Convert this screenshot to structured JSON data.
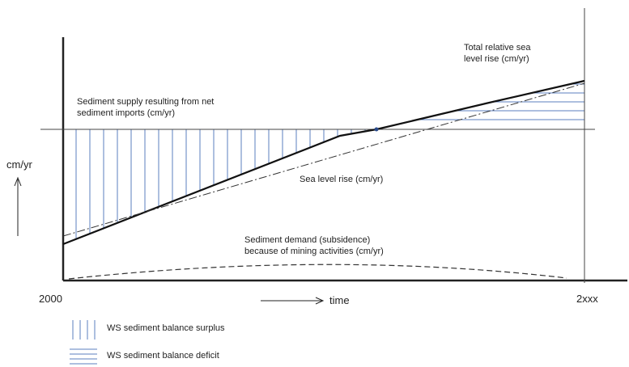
{
  "labels": {
    "sediment_supply_line1": "Sediment supply resulting from net",
    "sediment_supply_line2": "sediment imports (cm/yr)",
    "total_rise_line1": "Total relative sea",
    "total_rise_line2": "level rise (cm/yr)",
    "sea_level_rise": "Sea level rise (cm/yr)",
    "demand_line1": "Sediment demand (subsidence)",
    "demand_line2": "because of mining activities (cm/yr)",
    "y_unit": "cm/yr",
    "x_start": "2000",
    "x_end": "2xxx",
    "x_axis": "time"
  },
  "legend": {
    "surplus": "WS sediment balance surplus",
    "deficit": "WS sediment balance deficit"
  },
  "colors": {
    "hatch": "#5b7fbf",
    "axis": "#333333",
    "line": "#111111"
  }
}
